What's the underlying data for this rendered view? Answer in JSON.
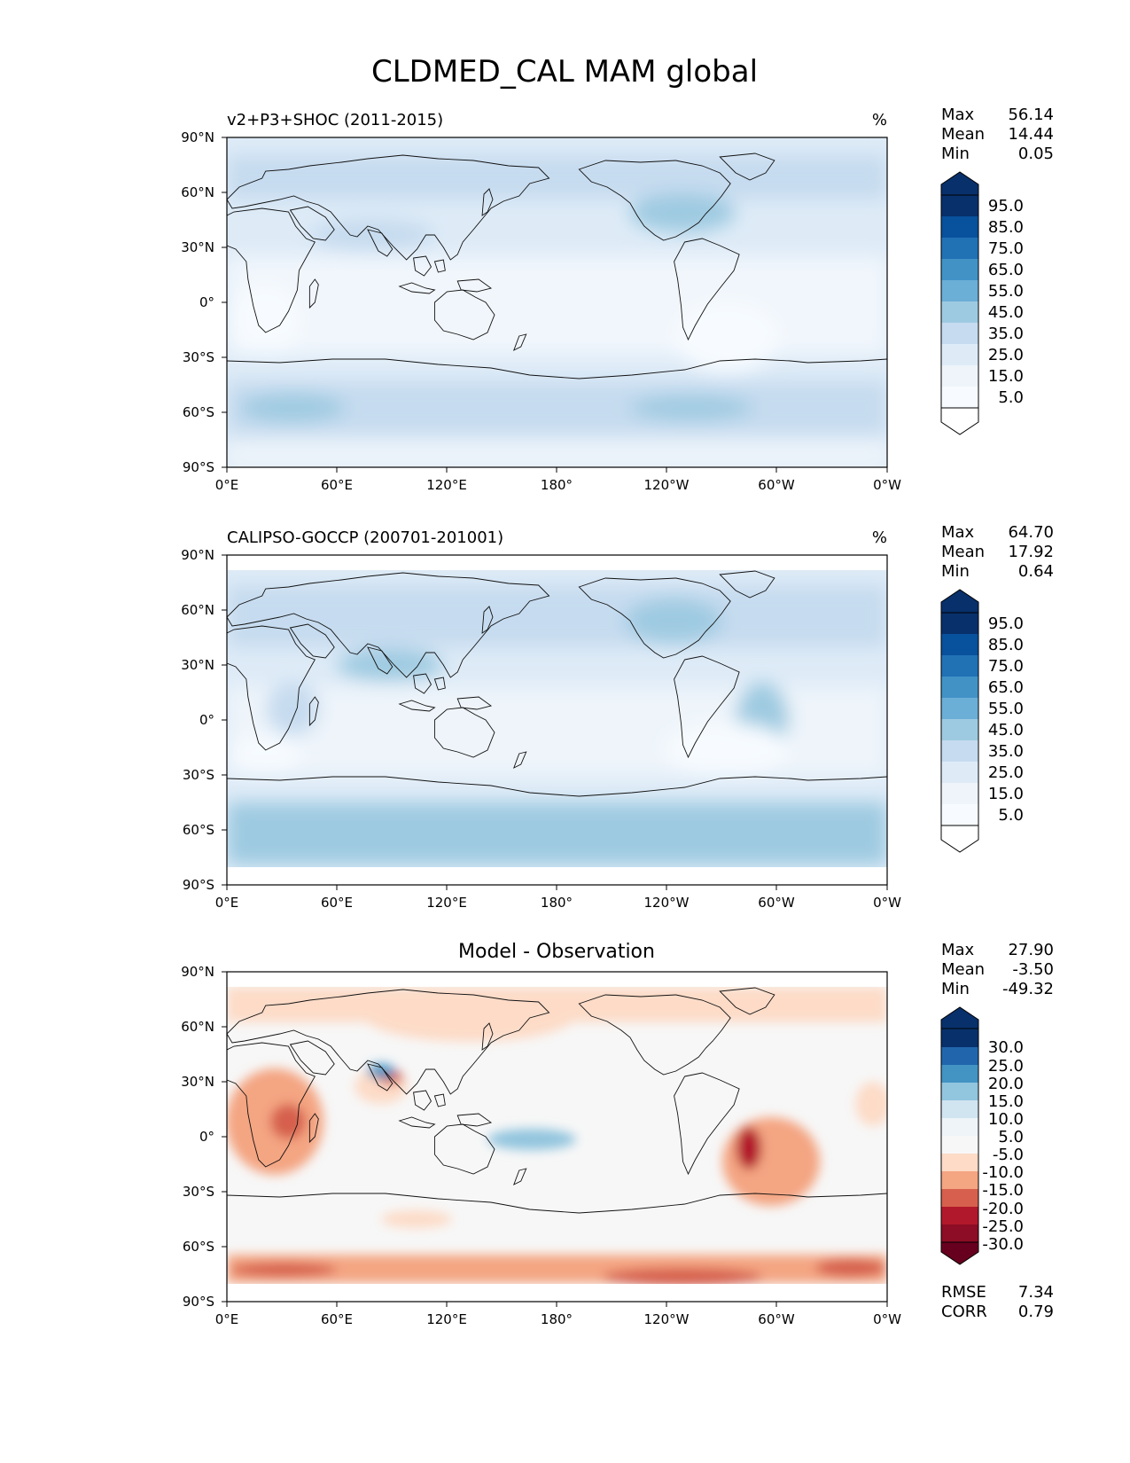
{
  "figure": {
    "title": "CLDMED_CAL MAM global"
  },
  "axes_ticks": {
    "lat": [
      "90°N",
      "60°N",
      "30°N",
      "0°",
      "30°S",
      "60°S",
      "90°S"
    ],
    "lon": [
      "0°E",
      "60°E",
      "120°E",
      "180°",
      "120°W",
      "60°W",
      "0°W"
    ]
  },
  "panels": [
    {
      "name": "model",
      "left_title": "v2+P3+SHOC (2011-2015)",
      "center_title": "",
      "units": "%",
      "stats": {
        "labels": [
          "Max",
          "Mean",
          "Min"
        ],
        "values": [
          "56.14",
          "14.44",
          "0.05"
        ]
      },
      "colorbar": {
        "labels": [
          "95.0",
          "85.0",
          "75.0",
          "65.0",
          "55.0",
          "45.0",
          "35.0",
          "25.0",
          "15.0",
          "5.0"
        ],
        "colors": [
          "#08306b",
          "#08519c",
          "#2171b5",
          "#4292c6",
          "#6baed6",
          "#9ecae1",
          "#c6dbef",
          "#deebf7",
          "#f7fbff"
        ]
      }
    },
    {
      "name": "observation",
      "left_title": "CALIPSO-GOCCP (200701-201001)",
      "center_title": "",
      "units": "%",
      "stats": {
        "labels": [
          "Max",
          "Mean",
          "Min"
        ],
        "values": [
          "64.70",
          "17.92",
          "0.64"
        ]
      },
      "colorbar": {
        "labels": [
          "95.0",
          "85.0",
          "75.0",
          "65.0",
          "55.0",
          "45.0",
          "35.0",
          "25.0",
          "15.0",
          "5.0"
        ],
        "colors": [
          "#08306b",
          "#08519c",
          "#2171b5",
          "#4292c6",
          "#6baed6",
          "#9ecae1",
          "#c6dbef",
          "#deebf7",
          "#f7fbff"
        ]
      }
    },
    {
      "name": "difference",
      "left_title": "",
      "center_title": "Model - Observation",
      "units": "",
      "stats": {
        "labels": [
          "Max",
          "Mean",
          "Min"
        ],
        "values": [
          "27.90",
          "-3.50",
          "-49.32"
        ]
      },
      "colorbar": {
        "labels": [
          "30.0",
          "25.0",
          "20.0",
          "15.0",
          "10.0",
          "5.0",
          "-5.0",
          "-10.0",
          "-15.0",
          "-20.0",
          "-25.0",
          "-30.0"
        ],
        "colors": [
          "#08306b",
          "#2166ac",
          "#4393c3",
          "#92c5de",
          "#d1e5f0",
          "#eef4f8",
          "#f7f7f7",
          "#fddbc7",
          "#f4a582",
          "#d6604d",
          "#b2182b",
          "#67001f"
        ]
      },
      "metrics": {
        "labels": [
          "RMSE",
          "CORR"
        ],
        "values": [
          "7.34",
          "0.79"
        ]
      }
    }
  ]
}
